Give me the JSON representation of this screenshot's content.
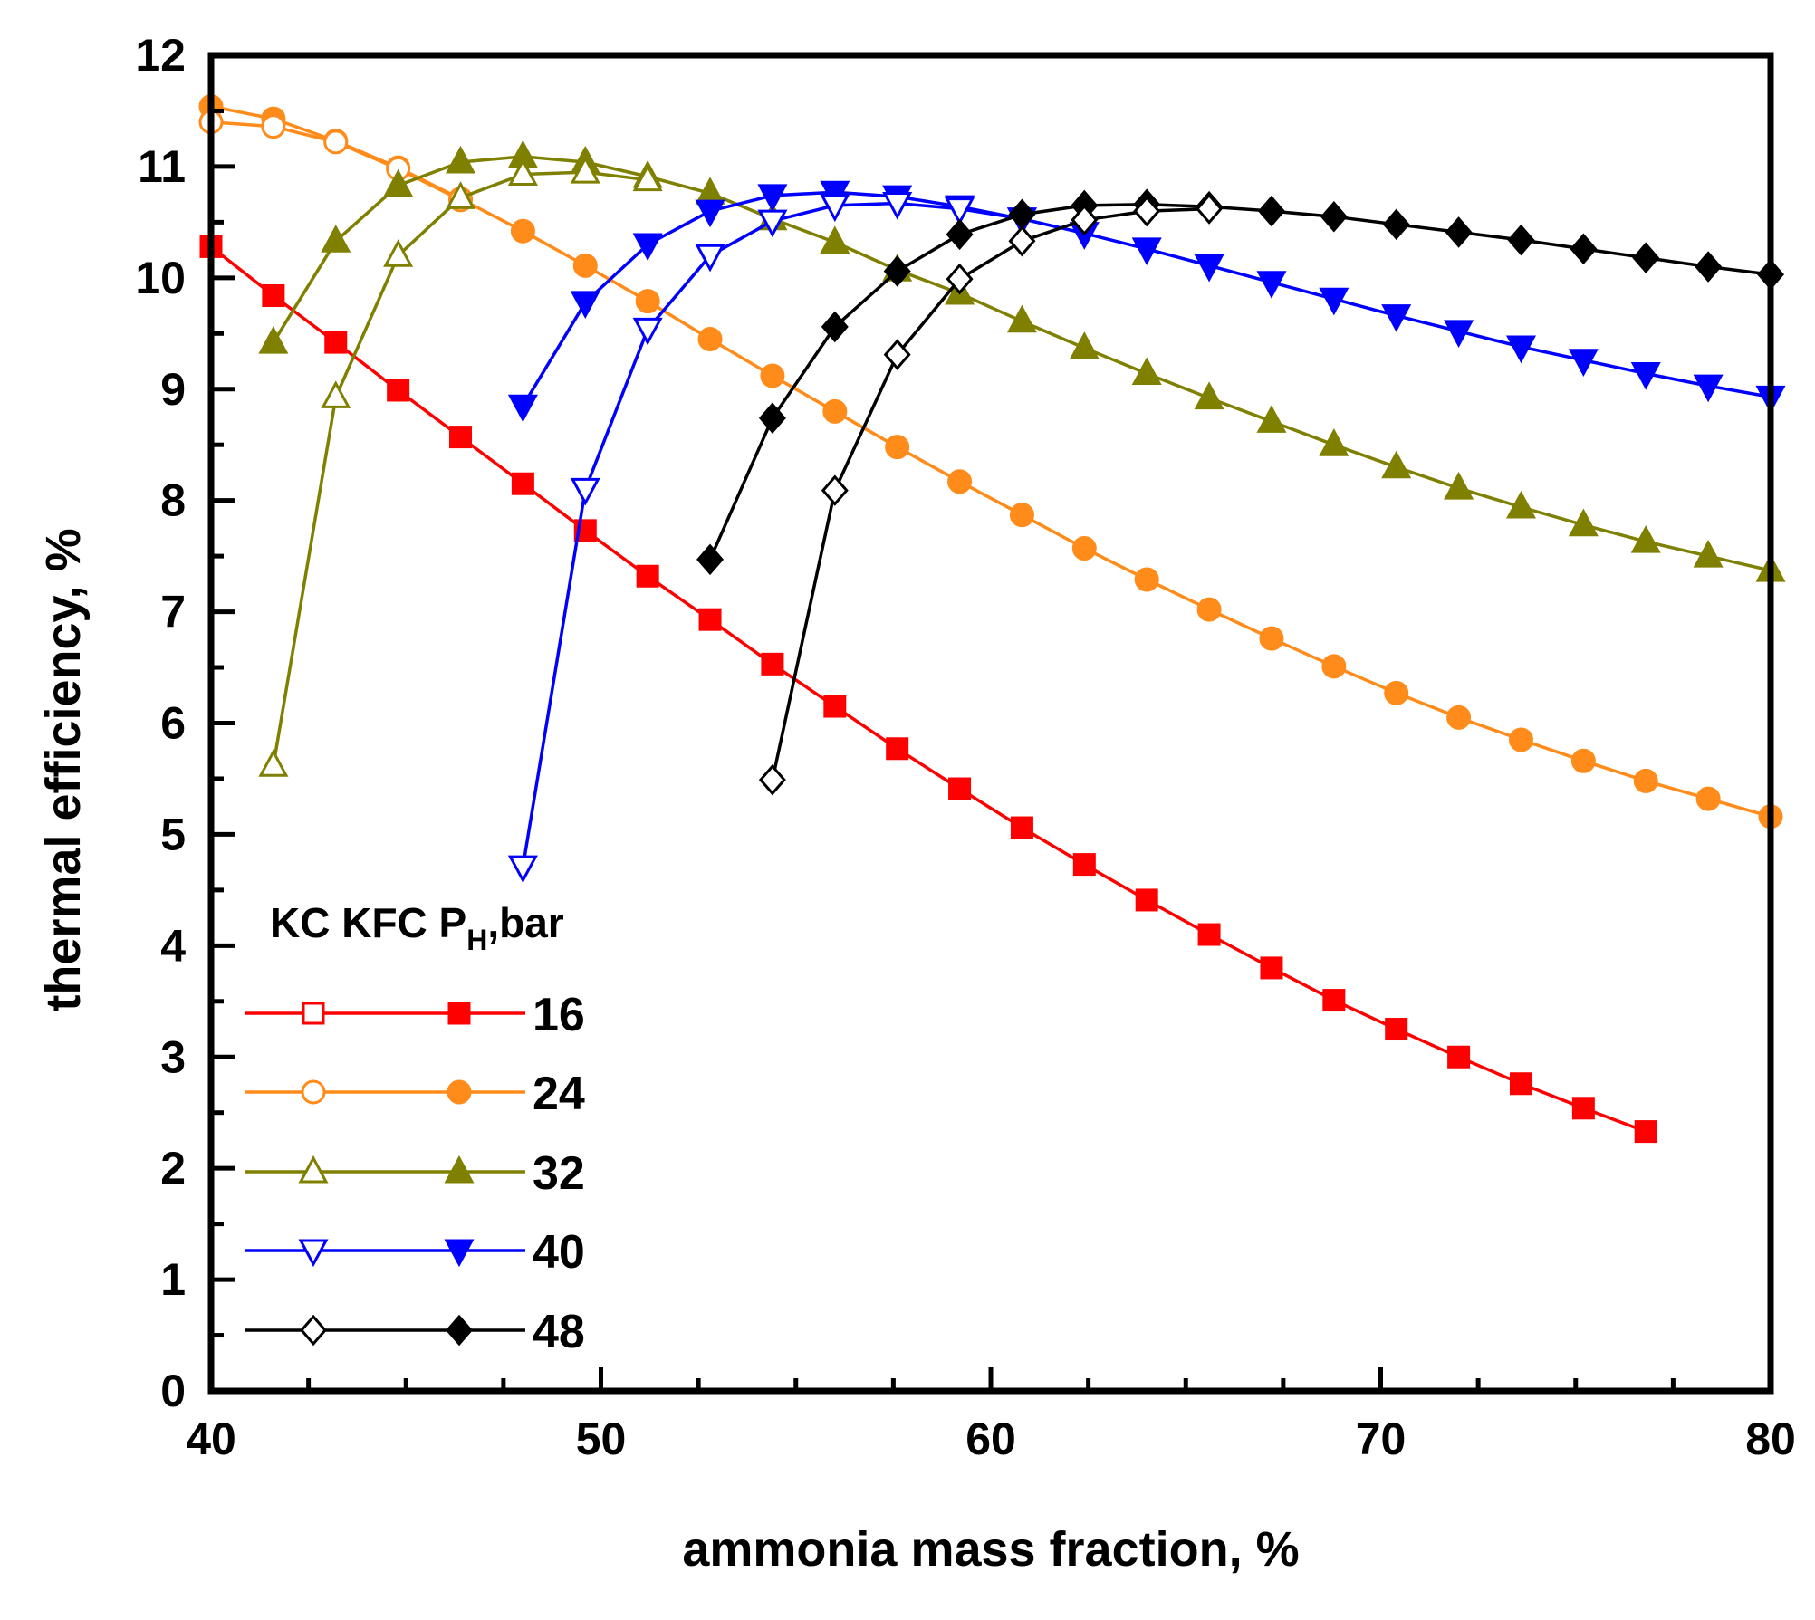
{
  "chart_data": {
    "type": "line",
    "title": "",
    "xlabel": "ammonia mass fraction, %",
    "ylabel": "thermal efficiency, %",
    "xlim": [
      40,
      80
    ],
    "ylim": [
      0,
      12
    ],
    "x_ticks": [
      "40",
      "50",
      "60",
      "70",
      "80"
    ],
    "y_ticks": [
      "0",
      "1",
      "2",
      "3",
      "4",
      "5",
      "6",
      "7",
      "8",
      "9",
      "10",
      "11",
      "12"
    ],
    "legend": {
      "placement": "bottom-left",
      "header_main": "KC KFC P",
      "header_sub": "H",
      "header_tail": ",bar"
    },
    "series": [
      {
        "name": "16",
        "cycle_pair": "KC/KFC",
        "color": "#ff0000",
        "marker": "square",
        "kc": {
          "x": [],
          "y": []
        },
        "kfc": {
          "x": [
            40.0,
            41.6,
            43.2,
            44.8,
            46.4,
            48.0,
            49.6,
            51.2,
            52.8,
            54.4,
            56.0,
            57.6,
            59.2,
            60.8,
            62.4,
            64.0,
            65.6,
            67.2,
            68.8,
            70.4,
            72.0,
            73.6,
            75.2,
            76.8
          ],
          "y": [
            10.28,
            9.84,
            9.42,
            8.99,
            8.57,
            8.15,
            7.73,
            7.32,
            6.93,
            6.53,
            6.15,
            5.77,
            5.41,
            5.06,
            4.73,
            4.41,
            4.1,
            3.8,
            3.51,
            3.25,
            3.0,
            2.76,
            2.54,
            2.33
          ]
        }
      },
      {
        "name": "24",
        "cycle_pair": "KC/KFC",
        "color": "#ff8c1a",
        "marker": "circle",
        "kc": {
          "x": [
            40.0,
            41.6,
            43.2,
            44.8,
            46.4
          ],
          "y": [
            11.4,
            11.36,
            11.22,
            10.98,
            10.7
          ]
        },
        "kfc": {
          "x": [
            40.0,
            41.6,
            43.2,
            44.8,
            46.4,
            48.0,
            49.6,
            51.2,
            52.8,
            54.4,
            56.0,
            57.6,
            59.2,
            60.8,
            62.4,
            64.0,
            65.6,
            67.2,
            68.8,
            70.4,
            72.0,
            73.6,
            75.2,
            76.8,
            78.4,
            80.0
          ],
          "y": [
            11.54,
            11.43,
            11.23,
            10.99,
            10.71,
            10.42,
            10.11,
            9.79,
            9.45,
            9.12,
            8.8,
            8.48,
            8.17,
            7.87,
            7.57,
            7.29,
            7.02,
            6.76,
            6.51,
            6.27,
            6.05,
            5.85,
            5.66,
            5.48,
            5.32,
            5.16
          ]
        }
      },
      {
        "name": "32",
        "cycle_pair": "KC/KFC",
        "color": "#808000",
        "marker": "triangle-up",
        "kc": {
          "x": [
            41.6,
            43.2,
            44.8,
            46.4,
            48.0,
            49.6,
            51.2
          ],
          "y": [
            5.62,
            8.93,
            10.2,
            10.72,
            10.93,
            10.95,
            10.88
          ]
        },
        "kfc": {
          "x": [
            41.6,
            43.2,
            44.8,
            46.4,
            48.0,
            49.6,
            51.2,
            52.8,
            54.4,
            56.0,
            57.6,
            59.2,
            60.8,
            62.4,
            64.0,
            65.6,
            67.2,
            68.8,
            70.4,
            72.0,
            73.6,
            75.2,
            76.8,
            78.4,
            80.0
          ],
          "y": [
            9.42,
            10.33,
            10.83,
            11.04,
            11.09,
            11.04,
            10.91,
            10.76,
            10.53,
            10.32,
            10.07,
            9.86,
            9.61,
            9.37,
            9.14,
            8.92,
            8.71,
            8.5,
            8.3,
            8.11,
            7.94,
            7.78,
            7.63,
            7.5,
            7.37
          ]
        }
      },
      {
        "name": "40",
        "cycle_pair": "KC/KFC",
        "color": "#0000ff",
        "marker": "triangle-down",
        "kc": {
          "x": [
            48.0,
            49.6,
            51.2,
            52.8,
            54.4,
            56.0,
            57.6,
            59.2,
            60.8
          ],
          "y": [
            4.71,
            8.1,
            9.54,
            10.2,
            10.51,
            10.65,
            10.67,
            10.62,
            10.53
          ]
        },
        "kfc": {
          "x": [
            48.0,
            49.6,
            51.2,
            52.8,
            54.4,
            56.0,
            57.6,
            59.2,
            60.8,
            62.4,
            64.0,
            65.6,
            67.2,
            68.8,
            70.4,
            72.0,
            73.6,
            75.2,
            76.8,
            78.4,
            80.0
          ],
          "y": [
            8.85,
            9.78,
            10.3,
            10.6,
            10.74,
            10.77,
            10.73,
            10.64,
            10.53,
            10.4,
            10.26,
            10.11,
            9.96,
            9.81,
            9.66,
            9.52,
            9.38,
            9.26,
            9.14,
            9.03,
            8.93
          ]
        }
      },
      {
        "name": "48",
        "cycle_pair": "KC/KFC",
        "color": "#000000",
        "marker": "diamond",
        "kc": {
          "x": [
            54.4,
            56.0,
            57.6,
            59.2,
            60.8,
            62.4,
            64.0,
            65.6
          ],
          "y": [
            5.49,
            8.09,
            9.31,
            9.99,
            10.33,
            10.52,
            10.6,
            10.62
          ]
        },
        "kfc": {
          "x": [
            52.8,
            54.4,
            56.0,
            57.6,
            59.2,
            60.8,
            62.4,
            64.0,
            65.6,
            67.2,
            68.8,
            70.4,
            72.0,
            73.6,
            75.2,
            76.8,
            78.4,
            80.0
          ],
          "y": [
            7.47,
            8.74,
            9.56,
            10.06,
            10.39,
            10.57,
            10.65,
            10.66,
            10.64,
            10.6,
            10.55,
            10.48,
            10.41,
            10.34,
            10.26,
            10.18,
            10.1,
            10.03
          ]
        }
      }
    ]
  }
}
